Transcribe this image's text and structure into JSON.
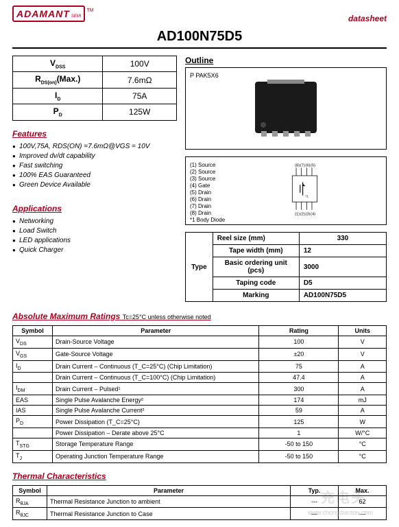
{
  "logo": {
    "brand": "ADAMANT",
    "sub": "SEMI",
    "tm": "TM"
  },
  "part_number": "AD100N75D5",
  "datasheet_label": "datasheet",
  "specs": [
    {
      "param": "V",
      "sub": "DSS",
      "value": "100V"
    },
    {
      "param": "R",
      "sub": "DS(on)",
      "suffix": "(Max.)",
      "value": "7.6mΩ"
    },
    {
      "param": "I",
      "sub": "D",
      "value": "75A"
    },
    {
      "param": "P",
      "sub": "D",
      "value": "125W"
    }
  ],
  "features_title": "Features",
  "features": [
    "100V,75A, RDS(ON) =7.6mΩ@VGS = 10V",
    "Improved dv/dt capability",
    "Fast switching",
    "100% EAS Guaranteed",
    "Green Device Available"
  ],
  "applications_title": "Applications",
  "applications": [
    "Networking",
    "Load Switch",
    "LED applications",
    "Quick Charger"
  ],
  "outline_title": "Outline",
  "package_label": "P PAK5X6",
  "pinout_labels": [
    "(1) Source",
    "(2) Source",
    "(3) Source",
    "(4) Gate",
    "(5) Drain",
    "(6) Drain",
    "(7) Drain",
    "(8) Drain",
    "*1 Body Diode"
  ],
  "pin_top": [
    "(8)",
    "(7)",
    "(6)",
    "(5)"
  ],
  "pin_bottom": [
    "(1)",
    "(2)",
    "(3)",
    "(4)"
  ],
  "type_table": {
    "header": "Type",
    "rows": [
      {
        "label": "Reel size (mm)",
        "value": "330"
      },
      {
        "label": "Tape width (mm)",
        "value": "12"
      },
      {
        "label": "Basic ordering unit (pcs)",
        "value": "3000"
      },
      {
        "label": "Taping code",
        "value": "D5"
      },
      {
        "label": "Marking",
        "value": "AD100N75D5"
      }
    ]
  },
  "ratings": {
    "title": "Absolute Maximum Ratings",
    "subtitle": "Tc=25°C unless otherwise noted",
    "headers": [
      "Symbol",
      "Parameter",
      "Rating",
      "Units"
    ],
    "rows": [
      {
        "sym": "V",
        "sub": "DS",
        "param": "Drain-Source Voltage",
        "rating": "100",
        "units": "V"
      },
      {
        "sym": "V",
        "sub": "GS",
        "param": "Gate-Source Voltage",
        "rating": "±20",
        "units": "V"
      },
      {
        "sym": "I",
        "sub": "D",
        "param": "Drain Current – Continuous (T_C=25°C) (Chip Limitation)",
        "rating": "75",
        "units": "A"
      },
      {
        "sym": "",
        "sub": "",
        "param": "Drain Current – Continuous (T_C=100°C) (Chip Limitation)",
        "rating": "47.4",
        "units": "A"
      },
      {
        "sym": "I",
        "sub": "DM",
        "param": "Drain Current – Pulsed¹",
        "rating": "300",
        "units": "A"
      },
      {
        "sym": "EAS",
        "sub": "",
        "param": "Single Pulse Avalanche Energy²",
        "rating": "174",
        "units": "mJ"
      },
      {
        "sym": "IAS",
        "sub": "",
        "param": "Single Pulse Avalanche Current²",
        "rating": "59",
        "units": "A"
      },
      {
        "sym": "P",
        "sub": "D",
        "param": "Power Dissipation (T_C=25°C)",
        "rating": "125",
        "units": "W"
      },
      {
        "sym": "",
        "sub": "",
        "param": "Power Dissipation – Derate above 25°C",
        "rating": "1",
        "units": "W/°C"
      },
      {
        "sym": "T",
        "sub": "STG",
        "param": "Storage Temperature Range",
        "rating": "-50 to 150",
        "units": "°C"
      },
      {
        "sym": "T",
        "sub": "J",
        "param": "Operating Junction Temperature Range",
        "rating": "-50 to 150",
        "units": "°C"
      }
    ]
  },
  "thermal": {
    "title": "Thermal Characteristics",
    "headers": [
      "Symbol",
      "Parameter",
      "Typ.",
      "Max."
    ],
    "rows": [
      {
        "sym": "R",
        "sub": "θJA",
        "param": "Thermal Resistance Junction to ambient",
        "typ": "---",
        "max": "62"
      },
      {
        "sym": "R",
        "sub": "θJC",
        "param": "Thermal Resistance Junction to Case",
        "typ": "---",
        "max": "---"
      }
    ]
  },
  "watermark": "充电头",
  "watermark_url": "www.chongdiantou.com"
}
